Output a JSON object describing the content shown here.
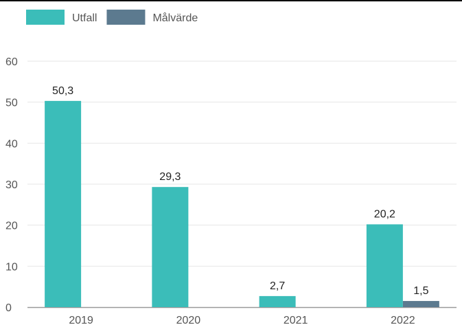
{
  "chart_data": {
    "type": "bar",
    "title": "",
    "xlabel": "",
    "ylabel": "",
    "categories": [
      "2019",
      "2020",
      "2021",
      "2022"
    ],
    "series": [
      {
        "name": "Utfall",
        "color": "#3bbdb9",
        "values": [
          50.3,
          29.3,
          2.7,
          20.2
        ],
        "labels": [
          "50,3",
          "29,3",
          "2,7",
          "20,2"
        ]
      },
      {
        "name": "Målvärde",
        "color": "#5c7a8f",
        "values": [
          null,
          null,
          null,
          1.5
        ],
        "labels": [
          null,
          null,
          null,
          "1,5"
        ]
      }
    ],
    "ylim": [
      0,
      60
    ],
    "yticks": [
      0,
      10,
      20,
      30,
      40,
      50,
      60
    ],
    "grid": true,
    "legend_position": "top-left"
  }
}
